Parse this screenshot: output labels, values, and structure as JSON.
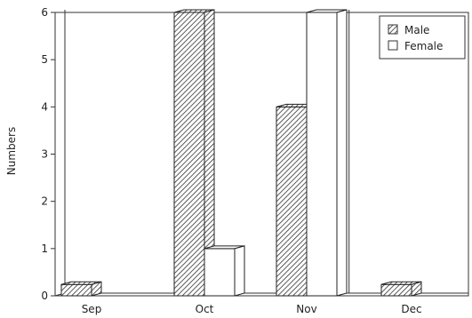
{
  "chart_data": {
    "type": "bar",
    "style": "3d-grouped",
    "categories": [
      "Sep",
      "Oct",
      "Nov",
      "Dec"
    ],
    "series": [
      {
        "name": "Male",
        "values": [
          0,
          6,
          4,
          0
        ],
        "fill": "hatched"
      },
      {
        "name": "Female",
        "values": [
          0,
          1,
          6,
          0
        ],
        "fill": "white"
      }
    ],
    "ylabel": "Numbers",
    "xlabel": "",
    "ylim": [
      0,
      6
    ],
    "yticks": [
      "0",
      "1",
      "2",
      "3",
      "4",
      "5",
      "6"
    ],
    "legend_position": "top-right",
    "grid": false
  }
}
